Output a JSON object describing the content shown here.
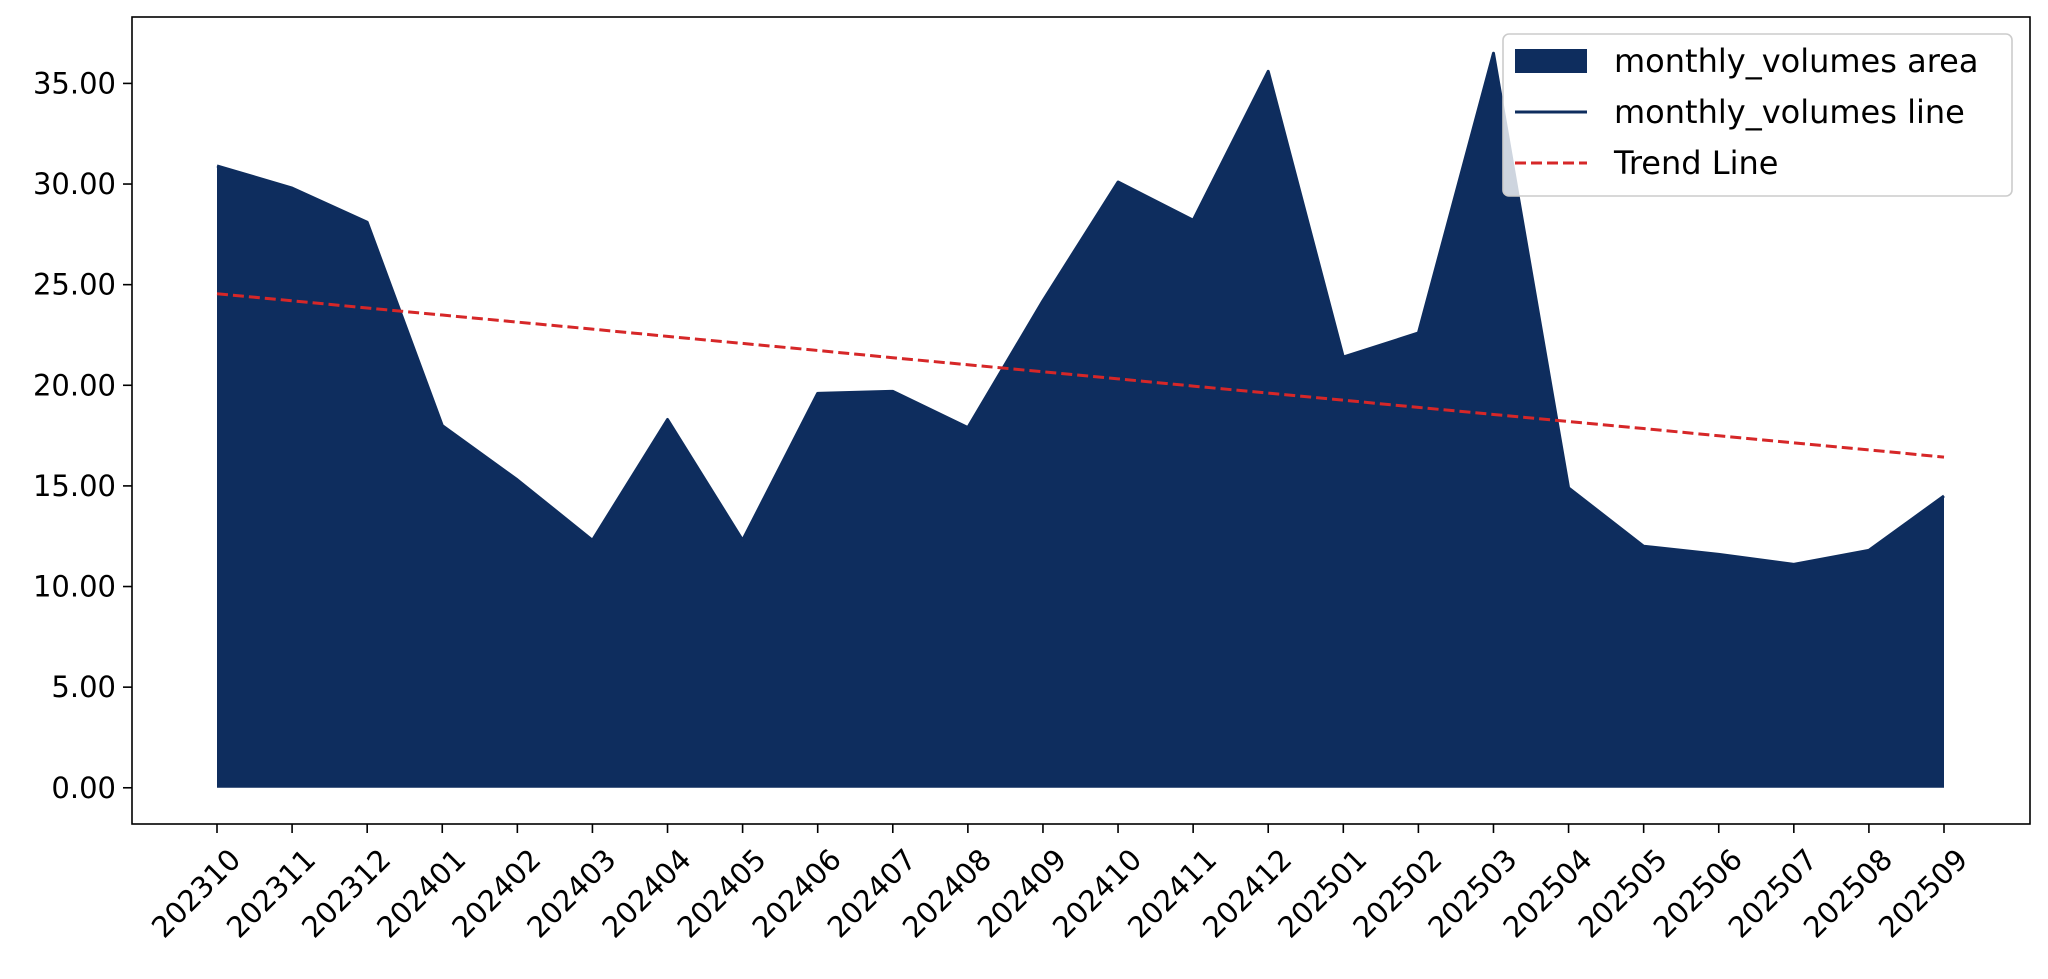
{
  "chart_data": {
    "type": "area",
    "title": "",
    "xlabel": "",
    "ylabel": "",
    "categories": [
      "202310",
      "202311",
      "202312",
      "202401",
      "202402",
      "202403",
      "202404",
      "202405",
      "202406",
      "202407",
      "202408",
      "202409",
      "202410",
      "202411",
      "202412",
      "202501",
      "202502",
      "202503",
      "202504",
      "202505",
      "202506",
      "202507",
      "202508",
      "202509"
    ],
    "series": [
      {
        "name": "monthly_volumes area",
        "kind": "area",
        "color": "#0e2d5e",
        "values": [
          30.9,
          29.8,
          28.1,
          18.0,
          15.3,
          12.3,
          18.3,
          12.3,
          19.6,
          19.7,
          17.9,
          24.2,
          30.1,
          28.2,
          35.6,
          21.4,
          22.6,
          36.5,
          14.9,
          12.0,
          11.6,
          11.1,
          11.8,
          14.5
        ]
      },
      {
        "name": "monthly_volumes line",
        "kind": "line",
        "color": "#0e2d5e",
        "values": [
          30.9,
          29.8,
          28.1,
          18.0,
          15.3,
          12.3,
          18.3,
          12.3,
          19.6,
          19.7,
          17.9,
          24.2,
          30.1,
          28.2,
          35.6,
          21.4,
          22.6,
          36.5,
          14.9,
          12.0,
          11.6,
          11.1,
          11.8,
          14.5
        ]
      },
      {
        "name": "Trend Line",
        "kind": "dashed-line",
        "color": "#d62728",
        "values": [
          24.55,
          24.2,
          23.84,
          23.49,
          23.14,
          22.79,
          22.43,
          22.08,
          21.73,
          21.37,
          21.02,
          20.67,
          20.32,
          19.96,
          19.61,
          19.26,
          18.9,
          18.55,
          18.2,
          17.85,
          17.49,
          17.14,
          16.79,
          16.43
        ]
      }
    ],
    "y_ticks": [
      "0.00",
      "5.00",
      "10.00",
      "15.00",
      "20.00",
      "25.00",
      "30.00",
      "35.00"
    ],
    "y_tick_values": [
      0,
      5,
      10,
      15,
      20,
      25,
      30,
      35
    ],
    "ylim": [
      -1.8,
      38.3
    ],
    "grid": false,
    "legend_position": "top-right"
  }
}
